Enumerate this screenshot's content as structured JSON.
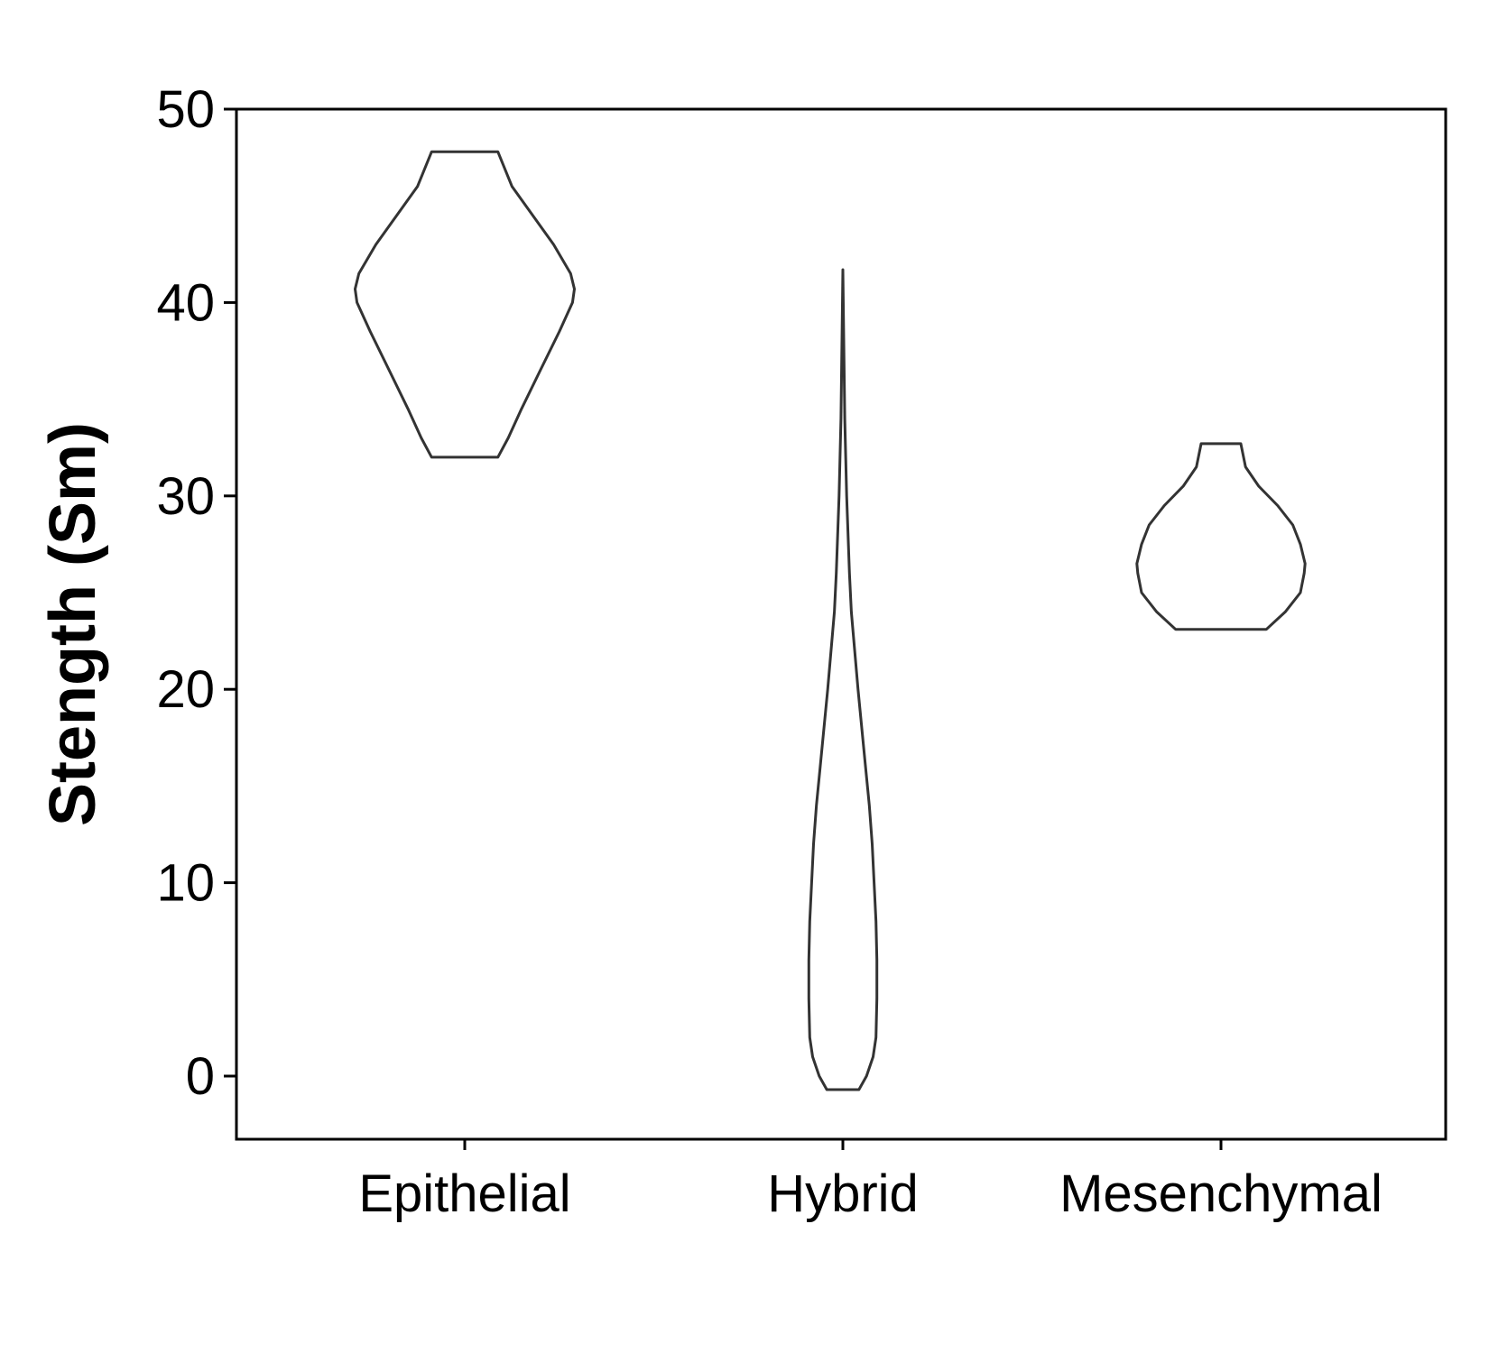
{
  "chart_data": {
    "type": "violin",
    "categories": [
      "Epithelial",
      "Hybrid",
      "Mesenchymal"
    ],
    "ylabel": "Stength (Sm)",
    "xlabel": "",
    "ylim": [
      -3.2,
      50
    ],
    "yticks": [
      0,
      10,
      20,
      30,
      40,
      50
    ],
    "ytick_labels": [
      "0",
      "10",
      "20",
      "30",
      "40",
      "50"
    ],
    "grid": false,
    "legend": false,
    "violins": [
      {
        "category": "Epithelial",
        "ymin": 32.0,
        "ymax": 47.8,
        "profile": [
          [
            32.0,
            0.175
          ],
          [
            33.0,
            0.23
          ],
          [
            34.5,
            0.3
          ],
          [
            36.5,
            0.4
          ],
          [
            38.5,
            0.5
          ],
          [
            40.0,
            0.57
          ],
          [
            40.7,
            0.58
          ],
          [
            41.5,
            0.56
          ],
          [
            43.0,
            0.47
          ],
          [
            44.5,
            0.36
          ],
          [
            46.0,
            0.25
          ],
          [
            47.8,
            0.175
          ]
        ]
      },
      {
        "category": "Hybrid",
        "ymin": -0.7,
        "ymax": 41.7,
        "profile": [
          [
            -0.7,
            0.085
          ],
          [
            0.0,
            0.125
          ],
          [
            1.0,
            0.16
          ],
          [
            2.0,
            0.175
          ],
          [
            4.0,
            0.18
          ],
          [
            6.0,
            0.18
          ],
          [
            8.0,
            0.175
          ],
          [
            10.0,
            0.165
          ],
          [
            12.0,
            0.155
          ],
          [
            14.0,
            0.14
          ],
          [
            16.0,
            0.12
          ],
          [
            20.0,
            0.08
          ],
          [
            24.0,
            0.045
          ],
          [
            26.0,
            0.035
          ],
          [
            30.0,
            0.02
          ],
          [
            34.0,
            0.01
          ],
          [
            38.0,
            0.005
          ],
          [
            41.7,
            0.0
          ]
        ]
      },
      {
        "category": "Mesenchymal",
        "ymin": 23.1,
        "ymax": 32.7,
        "profile": [
          [
            23.1,
            0.24
          ],
          [
            24.0,
            0.34
          ],
          [
            25.0,
            0.42
          ],
          [
            26.0,
            0.44
          ],
          [
            26.5,
            0.445
          ],
          [
            27.5,
            0.42
          ],
          [
            28.5,
            0.38
          ],
          [
            29.5,
            0.3
          ],
          [
            30.5,
            0.2
          ],
          [
            31.5,
            0.13
          ],
          [
            32.7,
            0.105
          ]
        ]
      }
    ]
  }
}
